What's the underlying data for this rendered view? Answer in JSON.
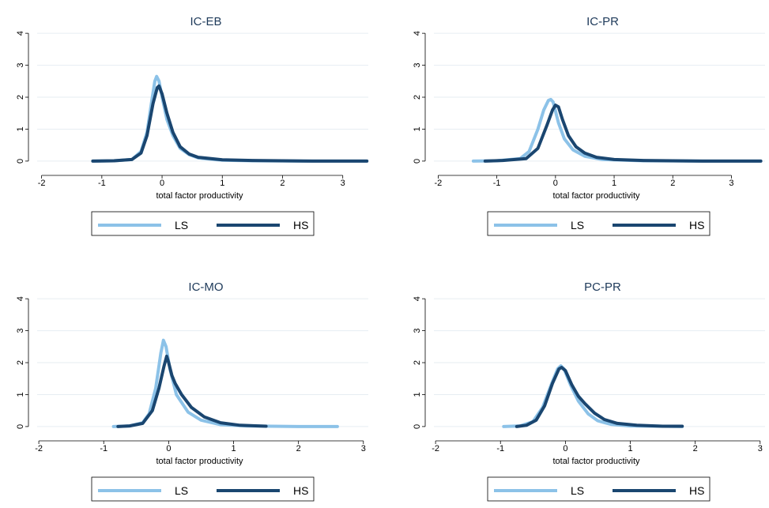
{
  "colors": {
    "LS": "#8cc2e8",
    "HS": "#1a4670",
    "grid": "#e6edf2",
    "title": "#1e3a5a"
  },
  "chart_data": [
    {
      "type": "line",
      "title": "IC-EB",
      "xlabel": "total factor productivity",
      "ylabel": "",
      "xticks": [
        -2,
        -1,
        0,
        1,
        2,
        3
      ],
      "yticks": [
        0,
        1,
        2,
        3,
        4
      ],
      "xlim": [
        -2.1,
        3.45
      ],
      "ylim": [
        -0.2,
        4.3
      ],
      "grid": true,
      "legend": {
        "position": "bottom",
        "entries": [
          "LS",
          "HS"
        ]
      },
      "series": [
        {
          "name": "LS",
          "points": [
            [
              -1.15,
              0
            ],
            [
              -0.8,
              0.01
            ],
            [
              -0.5,
              0.05
            ],
            [
              -0.35,
              0.3
            ],
            [
              -0.25,
              0.9
            ],
            [
              -0.17,
              1.9
            ],
            [
              -0.12,
              2.5
            ],
            [
              -0.09,
              2.65
            ],
            [
              -0.05,
              2.5
            ],
            [
              0.0,
              2.0
            ],
            [
              0.08,
              1.3
            ],
            [
              0.18,
              0.8
            ],
            [
              0.3,
              0.4
            ],
            [
              0.45,
              0.2
            ],
            [
              0.6,
              0.1
            ],
            [
              1.0,
              0.03
            ],
            [
              1.5,
              0.01
            ],
            [
              2.5,
              0
            ],
            [
              3.4,
              0
            ]
          ]
        },
        {
          "name": "HS",
          "points": [
            [
              -1.15,
              0
            ],
            [
              -0.8,
              0.01
            ],
            [
              -0.5,
              0.05
            ],
            [
              -0.35,
              0.25
            ],
            [
              -0.25,
              0.8
            ],
            [
              -0.15,
              1.8
            ],
            [
              -0.08,
              2.3
            ],
            [
              -0.05,
              2.35
            ],
            [
              0.0,
              2.1
            ],
            [
              0.08,
              1.5
            ],
            [
              0.18,
              0.9
            ],
            [
              0.3,
              0.45
            ],
            [
              0.45,
              0.22
            ],
            [
              0.6,
              0.12
            ],
            [
              1.0,
              0.04
            ],
            [
              1.5,
              0.02
            ],
            [
              2.5,
              0
            ],
            [
              3.4,
              0
            ]
          ]
        }
      ]
    },
    {
      "type": "line",
      "title": "IC-PR",
      "xlabel": "total factor productivity",
      "ylabel": "",
      "xticks": [
        -2,
        -1,
        0,
        1,
        2,
        3
      ],
      "yticks": [
        0,
        1,
        2,
        3,
        4
      ],
      "xlim": [
        -2.1,
        3.6
      ],
      "ylim": [
        -0.2,
        4.3
      ],
      "grid": true,
      "legend": {
        "position": "bottom",
        "entries": [
          "LS",
          "HS"
        ]
      },
      "series": [
        {
          "name": "LS",
          "points": [
            [
              -1.4,
              0
            ],
            [
              -1.0,
              0.01
            ],
            [
              -0.6,
              0.08
            ],
            [
              -0.45,
              0.3
            ],
            [
              -0.3,
              1.0
            ],
            [
              -0.2,
              1.6
            ],
            [
              -0.12,
              1.9
            ],
            [
              -0.08,
              1.93
            ],
            [
              -0.04,
              1.85
            ],
            [
              0.05,
              1.2
            ],
            [
              0.15,
              0.7
            ],
            [
              0.3,
              0.35
            ],
            [
              0.5,
              0.15
            ],
            [
              0.8,
              0.05
            ],
            [
              1.5,
              0.01
            ],
            [
              2.5,
              0
            ],
            [
              3.5,
              0
            ]
          ]
        },
        {
          "name": "HS",
          "points": [
            [
              -1.2,
              0
            ],
            [
              -0.9,
              0.02
            ],
            [
              -0.5,
              0.08
            ],
            [
              -0.3,
              0.4
            ],
            [
              -0.15,
              1.1
            ],
            [
              -0.05,
              1.6
            ],
            [
              0.0,
              1.75
            ],
            [
              0.05,
              1.7
            ],
            [
              0.12,
              1.3
            ],
            [
              0.22,
              0.8
            ],
            [
              0.35,
              0.45
            ],
            [
              0.5,
              0.25
            ],
            [
              0.7,
              0.12
            ],
            [
              1.0,
              0.05
            ],
            [
              1.5,
              0.02
            ],
            [
              2.5,
              0
            ],
            [
              3.5,
              0
            ]
          ]
        }
      ]
    },
    {
      "type": "line",
      "title": "IC-MO",
      "xlabel": "total factor productivity",
      "ylabel": "",
      "xticks": [
        -2,
        -1,
        0,
        1,
        2,
        3
      ],
      "yticks": [
        0,
        1,
        2,
        3,
        4
      ],
      "xlim": [
        -2.05,
        3.1
      ],
      "ylim": [
        -0.2,
        4.3
      ],
      "grid": true,
      "legend": {
        "position": "bottom",
        "entries": [
          "LS",
          "HS"
        ]
      },
      "series": [
        {
          "name": "LS",
          "points": [
            [
              -0.85,
              0
            ],
            [
              -0.6,
              0.02
            ],
            [
              -0.4,
              0.12
            ],
            [
              -0.3,
              0.4
            ],
            [
              -0.2,
              1.2
            ],
            [
              -0.12,
              2.3
            ],
            [
              -0.08,
              2.7
            ],
            [
              -0.04,
              2.5
            ],
            [
              0.02,
              1.8
            ],
            [
              0.12,
              1.0
            ],
            [
              0.3,
              0.45
            ],
            [
              0.5,
              0.2
            ],
            [
              0.8,
              0.06
            ],
            [
              1.2,
              0.02
            ],
            [
              1.6,
              0.01
            ],
            [
              2.0,
              0
            ],
            [
              2.6,
              0
            ]
          ]
        },
        {
          "name": "HS",
          "points": [
            [
              -0.78,
              0
            ],
            [
              -0.6,
              0.02
            ],
            [
              -0.4,
              0.1
            ],
            [
              -0.25,
              0.5
            ],
            [
              -0.15,
              1.2
            ],
            [
              -0.07,
              1.9
            ],
            [
              -0.03,
              2.2
            ],
            [
              0.0,
              2.0
            ],
            [
              0.05,
              1.6
            ],
            [
              0.1,
              1.35
            ],
            [
              0.2,
              1.0
            ],
            [
              0.35,
              0.6
            ],
            [
              0.55,
              0.3
            ],
            [
              0.8,
              0.12
            ],
            [
              1.1,
              0.04
            ],
            [
              1.5,
              0.01
            ]
          ]
        }
      ]
    },
    {
      "type": "line",
      "title": "PC-PR",
      "xlabel": "total factor productivity",
      "ylabel": "",
      "xticks": [
        -2,
        -1,
        0,
        1,
        2,
        3
      ],
      "yticks": [
        0,
        1,
        2,
        3,
        4
      ],
      "xlim": [
        -2.05,
        3.1
      ],
      "ylim": [
        -0.2,
        4.3
      ],
      "grid": true,
      "legend": {
        "position": "bottom",
        "entries": [
          "LS",
          "HS"
        ]
      },
      "series": [
        {
          "name": "LS",
          "points": [
            [
              -0.95,
              0
            ],
            [
              -0.7,
              0.02
            ],
            [
              -0.5,
              0.15
            ],
            [
              -0.35,
              0.6
            ],
            [
              -0.22,
              1.3
            ],
            [
              -0.12,
              1.8
            ],
            [
              -0.07,
              1.9
            ],
            [
              -0.02,
              1.8
            ],
            [
              0.08,
              1.3
            ],
            [
              0.2,
              0.8
            ],
            [
              0.35,
              0.4
            ],
            [
              0.5,
              0.18
            ],
            [
              0.7,
              0.07
            ],
            [
              1.0,
              0.02
            ],
            [
              1.5,
              0.01
            ],
            [
              1.8,
              0
            ]
          ]
        },
        {
          "name": "HS",
          "points": [
            [
              -0.75,
              0
            ],
            [
              -0.6,
              0.04
            ],
            [
              -0.45,
              0.2
            ],
            [
              -0.32,
              0.65
            ],
            [
              -0.2,
              1.35
            ],
            [
              -0.1,
              1.8
            ],
            [
              -0.06,
              1.85
            ],
            [
              0.0,
              1.75
            ],
            [
              0.1,
              1.3
            ],
            [
              0.2,
              0.95
            ],
            [
              0.3,
              0.72
            ],
            [
              0.45,
              0.42
            ],
            [
              0.6,
              0.22
            ],
            [
              0.8,
              0.1
            ],
            [
              1.1,
              0.04
            ],
            [
              1.5,
              0.01
            ],
            [
              1.8,
              0.01
            ]
          ]
        }
      ]
    }
  ]
}
